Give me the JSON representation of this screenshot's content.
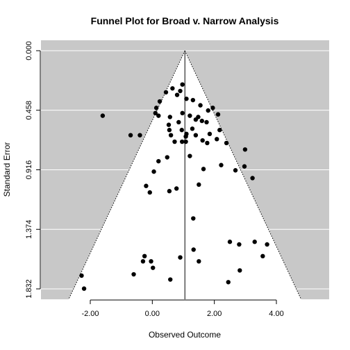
{
  "chart_data": {
    "type": "scatter",
    "subtype": "funnel",
    "title": "Funnel Plot for Broad v. Narrow Analysis",
    "xlabel": "Observed Outcome",
    "ylabel": "Standard Error",
    "xlim": [
      -3.35,
      5.73
    ],
    "ylim": [
      1.832,
      0.0
    ],
    "y_reversed": true,
    "x_ticks": [
      -2.0,
      0.0,
      2.0,
      4.0
    ],
    "x_tick_labels": [
      "-2.00",
      "0.00",
      "2.00",
      "4.00"
    ],
    "y_ticks": [
      0.0,
      0.458,
      0.916,
      1.374,
      1.832
    ],
    "y_tick_labels": [
      "0.000",
      "0.458",
      "0.916",
      "1.374",
      "1.832"
    ],
    "center_estimate": 1.05,
    "funnel_multiplier": 1.96,
    "background_color": "#c8c8c8",
    "funnel_fill": "#ffffff",
    "point_color": "#000000",
    "grid": true,
    "points": [
      {
        "x": 0.44,
        "y": 0.32
      },
      {
        "x": 0.65,
        "y": 0.29
      },
      {
        "x": 0.97,
        "y": 0.26
      },
      {
        "x": 0.24,
        "y": 0.39
      },
      {
        "x": 0.8,
        "y": 0.34
      },
      {
        "x": 0.9,
        "y": 0.31
      },
      {
        "x": 1.1,
        "y": 0.37
      },
      {
        "x": 1.55,
        "y": 0.42
      },
      {
        "x": 1.31,
        "y": 0.38
      },
      {
        "x": 1.8,
        "y": 0.46
      },
      {
        "x": 1.95,
        "y": 0.44
      },
      {
        "x": 2.12,
        "y": 0.49
      },
      {
        "x": 0.13,
        "y": 0.44
      },
      {
        "x": 0.2,
        "y": 0.5
      },
      {
        "x": 0.57,
        "y": 0.51
      },
      {
        "x": 0.1,
        "y": 0.48
      },
      {
        "x": 0.53,
        "y": 0.57
      },
      {
        "x": 0.85,
        "y": 0.55
      },
      {
        "x": 0.97,
        "y": 0.48
      },
      {
        "x": 1.4,
        "y": 0.53
      },
      {
        "x": 1.48,
        "y": 0.51
      },
      {
        "x": 1.21,
        "y": 0.5
      },
      {
        "x": 1.6,
        "y": 0.54
      },
      {
        "x": 1.75,
        "y": 0.55
      },
      {
        "x": 0.55,
        "y": 0.61
      },
      {
        "x": 0.95,
        "y": 0.61
      },
      {
        "x": 1.29,
        "y": 0.6
      },
      {
        "x": 1.4,
        "y": 0.65
      },
      {
        "x": 1.85,
        "y": 0.64
      },
      {
        "x": 2.17,
        "y": 0.61
      },
      {
        "x": 0.72,
        "y": 0.7
      },
      {
        "x": 0.96,
        "y": 0.7
      },
      {
        "x": 1.08,
        "y": 0.7
      },
      {
        "x": 1.62,
        "y": 0.69
      },
      {
        "x": 1.77,
        "y": 0.71
      },
      {
        "x": 2.08,
        "y": 0.68
      },
      {
        "x": 2.39,
        "y": 0.71
      },
      {
        "x": 1.1,
        "y": 0.64
      },
      {
        "x": -1.6,
        "y": 0.5
      },
      {
        "x": -0.7,
        "y": 0.65
      },
      {
        "x": -0.4,
        "y": 0.65
      },
      {
        "x": 0.6,
        "y": 0.65
      },
      {
        "x": 1.08,
        "y": 0.66
      },
      {
        "x": 2.99,
        "y": 0.76
      },
      {
        "x": 0.48,
        "y": 0.82
      },
      {
        "x": 0.2,
        "y": 0.85
      },
      {
        "x": 1.21,
        "y": 0.81
      },
      {
        "x": 0.05,
        "y": 0.93
      },
      {
        "x": 1.65,
        "y": 0.91
      },
      {
        "x": 2.22,
        "y": 0.88
      },
      {
        "x": 2.68,
        "y": 0.92
      },
      {
        "x": 2.97,
        "y": 0.89
      },
      {
        "x": 3.23,
        "y": 0.98
      },
      {
        "x": -0.2,
        "y": 1.04
      },
      {
        "x": -0.08,
        "y": 1.09
      },
      {
        "x": 0.55,
        "y": 1.08
      },
      {
        "x": 0.78,
        "y": 1.06
      },
      {
        "x": 1.5,
        "y": 1.03
      },
      {
        "x": 1.32,
        "y": 1.29
      },
      {
        "x": 2.5,
        "y": 1.47
      },
      {
        "x": 2.8,
        "y": 1.49
      },
      {
        "x": 3.3,
        "y": 1.47
      },
      {
        "x": 3.7,
        "y": 1.49
      },
      {
        "x": 3.56,
        "y": 1.58
      },
      {
        "x": 1.33,
        "y": 1.53
      },
      {
        "x": 1.5,
        "y": 1.62
      },
      {
        "x": 0.9,
        "y": 1.59
      },
      {
        "x": -0.25,
        "y": 1.58
      },
      {
        "x": -0.3,
        "y": 1.62
      },
      {
        "x": -0.04,
        "y": 1.62
      },
      {
        "x": 0.02,
        "y": 1.67
      },
      {
        "x": -0.6,
        "y": 1.72
      },
      {
        "x": 2.82,
        "y": 1.69
      },
      {
        "x": 0.58,
        "y": 1.76
      },
      {
        "x": 2.45,
        "y": 1.78
      },
      {
        "x": -2.28,
        "y": 1.73
      },
      {
        "x": -2.2,
        "y": 1.83
      }
    ]
  }
}
